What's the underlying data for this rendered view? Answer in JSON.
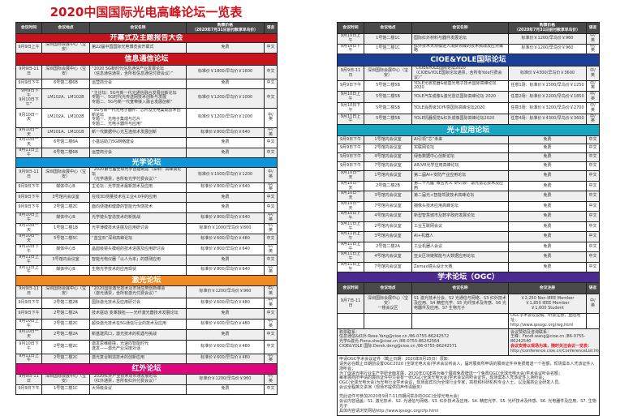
{
  "title": "2020中国国际光电高峰论坛一览表",
  "headers": [
    "会议时间",
    "会议地点",
    "会议名称",
    "购票价格\n（2020年7月31日前付款享早鸟价）",
    "语言"
  ],
  "ogc_headers": [
    "会议时间",
    "会议地点",
    "会议名称",
    "会议注册",
    "语言"
  ],
  "colors": {
    "title": "#d0121b",
    "opening": "#c8141c",
    "ict": "#c8141c",
    "optics": "#0c96d8",
    "laser": "#f08a24",
    "infrared": "#e0047c",
    "cioe_yole": "#1b3f97",
    "light_plus": "#17a5c1",
    "ogc": "#4b2a8f"
  },
  "left": [
    {
      "section": "开幕式及主题报告大会",
      "color": "opening",
      "rows": [
        [
          "9月9日上午",
          "深圳国际会展中心（宝安）",
          "第22届中国国际光电博览会开幕式",
          "免费",
          "中文"
        ]
      ]
    },
    {
      "section": "信息通信论坛",
      "color": "ict",
      "rows": [
        [
          "9月9日-11日",
          "深圳国际会展中心（宝安）",
          "“2020 5G新时代信息通信产业发展论坛\n（信息通信通票，含所有信息通信付费会议）”",
          "标准价￥1800/早鸟价￥1600",
          "中文"
        ],
        [
          "9月9日下午",
          "6号馆二楼6B",
          "运营商分会",
          "免费",
          "中文"
        ],
        [
          "“9月9日下午\n9月10日下午”",
          "LM102A、LM102B",
          "“主论坛：5G与新一代光通信融合发展创新论坛\n专题一、5G时代光传送网技术创新与发展\n专题二、5G与新一代宽带接入融合发展创新”",
          "标准价￥1200/早鸟价￥1000",
          "中文"
        ],
        [
          "9月10日一天",
          "LM102A、LM102B",
          "“5G与新一代光电子器件、芯片及光电集成技术创新论坛\n专题一、光电子集成与芯片\n专题二、光电子器件与应用”",
          "标准价￥1200/早鸟价￥1000",
          "中/英"
        ],
        [
          "9月10日一天",
          "LM101A、LM101B",
          "新一代数据中心光互连技术发展创新",
          "标准价￥800/早鸟价￥640",
          "中/英"
        ],
        [
          "9月10日一天",
          "6号馆二楼6A",
          "小基站助力5G网络建设",
          "免费",
          "中文"
        ],
        [
          "9月11日上午",
          "6号馆二楼6B",
          "运营商分会",
          "免费",
          "中文"
        ]
      ]
    },
    {
      "section": "光学论坛",
      "color": "optics",
      "rows": [
        [
          "9月9日-11日",
          "深圳国际会展中心（宝安）",
          "“2020第七届全球光学智能制造（深圳）高峰会论坛\n（光学通票，含所有光学付费会议）”",
          "标准价￥1500/早鸟价￥1200",
          "中/英"
        ],
        [
          "9月9日下午",
          "媒体中心B",
          "主论坛：光学技术最新技术及应用",
          "标准价￥800/早鸟价￥640",
          "中/英"
        ],
        [
          "9月9日下午",
          "3号馆内会议室",
          "在线3D测量技术在工业4.0中的应用",
          "免费",
          "中文"
        ],
        [
          "9月9日下午",
          "2号馆二楼2C",
          "面向便捷和健康的智能光传感技术",
          "免费",
          "中文"
        ],
        [
          "9月10日上午",
          "媒体中心B",
          "光学镜头智造技术的新挑战",
          "标准价￥800/早鸟价￥640",
          "中/英"
        ],
        [
          "9月10日一天",
          "1号馆二楼1B",
          "光学薄膜技术进展及应用研讨会",
          "标准价￥1000/早鸟价￥800",
          "中/英"
        ],
        [
          "9月10日一天",
          "5号馆二楼5C",
          "“蓝宝石”深圳高峰论坛",
          "标准价￥600/早鸟价￥480",
          "中文"
        ],
        [
          "9月10日下午",
          "媒体中心B",
          "晶圆级镜头模组的技术进展及应用研讨会",
          "标准价￥800/早鸟价￥640",
          "中/英"
        ],
        [
          "9月11日上午",
          "3号馆内会议室",
          "智能光电仪器「以人为本」的感测应用",
          "免费",
          "中文"
        ],
        [
          "9月11日上午",
          "媒体中心B",
          "生物光学技术的应用现状",
          "标准价￥800/早鸟价￥640",
          "中/英"
        ]
      ]
    },
    {
      "section": "激光论坛",
      "color": "laser",
      "rows": [
        [
          "9月9日-11日",
          "深圳国际会展中心（宝安）",
          "“2020国际激光技术及市场应用创新峰会\n（激光通票，含所有激光付费会议）”",
          "标准价￥1200/早鸟价￥960",
          "中/英"
        ],
        [
          "9月9日下午",
          "2号馆二楼2B",
          "国际激光技术及应用研讨会",
          "标准价￥600/早鸟价￥480",
          "中/英"
        ],
        [
          "9月9日下午",
          "2号馆二楼2A",
          "技术驱动 变革融拓——光纤激光器技术发展论坛",
          "免费",
          "中文"
        ],
        [
          "9月10日上午",
          "2号馆二楼2C",
          "超快激光技术在5G通信行业的技术及应用",
          "标准价￥600/早鸟价￥480",
          "中/英"
        ],
        [
          "9月10日一天",
          "2号馆二楼2A",
          "新基建风口，激光技术的机遇与挑战",
          "免费",
          "中文"
        ],
        [
          "9月10日下午",
          "2号馆二楼2C",
          "激发思维碰撞，光速向智能时代\n迸发——激光产业深度对话",
          "标准价￥600/早鸟价￥480",
          "中文"
        ],
        [
          "9月11日上午",
          "2号馆二楼2C",
          "激光复合制造技术的创新应用",
          "标准价￥600/早鸟价￥480",
          "中/英"
        ]
      ]
    },
    {
      "section": "红外论坛",
      "color": "infrared",
      "rows": [
        [
          "9月9日-11日",
          "深圳国际会展中心（宝安）",
          "“2020红外产业技术及市场发展论坛\n（红外通票，含所有红外付费会议）”",
          "标准价￥1200/早鸟价￥960",
          "中/英"
        ],
        [
          "9月9日下午",
          "1号馆二楼1C",
          "大师级会议",
          "免费",
          "中文"
        ]
      ]
    }
  ],
  "right": [
    {
      "section": "",
      "rows": [
        [
          "9月10日上午",
          "1号馆二楼1C",
          "国际红外材料与器件发展论坛",
          "标准价￥1200/早鸟价￥960",
          "中/英"
        ],
        [
          "9月10日下午",
          "1号馆二楼1C",
          "红外技术大规模进入消费领域的技术挑战及应对策略",
          "标准价￥1200/早鸟价￥960",
          "中/英"
        ]
      ]
    },
    {
      "section": "CIOE&YOLE国际论坛",
      "color": "cioe_yole",
      "rows": [
        [
          "9月9日-11日",
          "深圳国际会展中心（宝安）",
          "“CIOE&YOLE国际论坛2020\n（CIOE&YOLE国际论坛通票，含所有Yole付费会议）”",
          "标准价￥4300/早鸟价￥3600",
          "中/英"
        ],
        [
          "9月9日下午",
          "5号馆二楼5B",
          "YOLE光收发器&硅基光电子技术国际高峰论坛2020",
          "任意1场：标准价￥1500/早鸟价￥1250",
          "中/英"
        ],
        [
          "9月10日上午",
          "5号馆二楼5B",
          "YOLE汽车成像&激光雷达国际高峰论坛 2020",
          "任意2场：标准价￥2200/早鸟价￥1850",
          "中/英"
        ],
        [
          "9月10日下午",
          "5号馆二楼5B",
          "YOLE消费级3D传感国际高峰论坛2020",
          "任意3场：标准价￥3200/早鸟价￥2700",
          "中/英"
        ],
        [
          "9月11日上午",
          "5号馆二楼5B",
          "YOLE机器视觉&红外成像国际高峰论坛2020",
          "任意4场：标准价￥4300/早鸟价￥3600",
          "中/英"
        ]
      ]
    },
    {
      "section": "光+应用论坛",
      "color": "light_plus",
      "rows": [
        [
          "9月9日下午",
          "1号馆内会议室",
          "AI引领“芯”未来",
          "免费",
          "中文"
        ],
        [
          "9月9日下午",
          "2号馆内会议室",
          "实联网论坛",
          "免费",
          "中文"
        ],
        [
          "9月9日下午",
          "4号馆内会议室",
          "绿色数据中心创新论坛",
          "免费",
          "中文"
        ],
        [
          "9月9日下午",
          "7号馆内会议室",
          "AR/VR光学应用高峰论坛",
          "免费",
          "中文"
        ],
        [
          "9月10日一天",
          "1号馆内会议室",
          "第二届AI+安防产业应用论坛",
          "免费",
          "中文"
        ],
        [
          "9月10日一天",
          "2号馆二楼2B",
          "第二十九届“微言大义”研讨会：激光雷达技术及应用",
          "免费",
          "中文"
        ],
        [
          "9月10日一天",
          "3号馆内会议室",
          "第二届光+智能驾驶技术高峰论坛",
          "免费",
          "中文"
        ],
        [
          "9月10日一天",
          "7号馆内会议室",
          "摄像头技术应用高峰论坛",
          "免费",
          "中文"
        ],
        [
          "9月10日下午",
          "4号馆内会议室",
          "新型智慧城市及数字政府发展论坛",
          "免费",
          "中文"
        ],
        [
          "9月11日上午",
          "2号馆内会议室",
          "工业互联网会议",
          "免费",
          "中文"
        ],
        [
          "9月11日上午",
          "3号馆内会议室",
          "AI+机器人",
          "免费",
          "中文"
        ],
        [
          "9月11日上午",
          "2号馆二楼2A",
          "工业机器人会议",
          "免费",
          "中文"
        ],
        [
          "9月11日上午",
          "4号馆内会议室",
          "亚太区块链赋能与大数据应用论坛",
          "免费",
          "中文"
        ],
        [
          "9月11日上午",
          "7号馆内会议室",
          "Zemax镜头设计大赛",
          "免费",
          "中文"
        ]
      ]
    }
  ],
  "ogc": {
    "section": "学术论坛（OGC）",
    "row": [
      "9月7日-11日",
      "深圳国际会展中心（宝安）\n一楼会议区",
      "S1 激光技术分会、S2 光通信与网络、S3 红外技术及应用、S4 精密光学、S5 光纤技术及传感、S6 光电器件及应用、S7 生物光子",
      "￥2,250 Non-IEEE Member\n￥1,850 IEEE Member\n￥1,600 Student",
      "中/英"
    ],
    "register": "OGC学术会议投稿、听会注册，登陆地址：\nhttp://www.ipsogc.org/reg.html",
    "contacts_left": "购票联系：\n信息通信&红外:Rose.Yang@cioe.cn /86-0755-86242572\n光学&激光:Fiona.she@cioe.cn /86-0755-86242564\nCIOE&YOLE 国际:Derek.deng@cioe.cn /86-0755-86242571",
    "contacts_right_1": "会议赞助及咨询联系：\n王峰：Fendi.wang@cioe.cn /86-0755-86242540",
    "contacts_right_red": "会议安排以现场为准，随时关注会议一览表：",
    "contacts_right_2": "http://conference.cioe.cn/ConferenceList.html",
    "notes": "申请OGC学术会议证件（截止日期：2020年8月25日）须知：\n请务必在截止日期前设置OGC2020 (全球光电大会)学术会议听会人，届时展商所申请的展商证件中免费赠送一个名额，现场需本人凭该证件入场听会；\n为了促进光电行业生产学研全面发展，2020年CIOE将为每个展商免费赠送一个免费OGC(全球光电大会)学术会议听会名额；\n每家展商所申请的展商证件中只会有一张OGC(全球光电大会)学术会议的听会证件，现场需本人凭该证件入场听会；\nOGC(全球光电大会)为光电行业学术会议，现场嘉宾均为全球行业专家，高校和科研机构专业人士，以及展商企业研发人员。\n会议全程英文讲演（现场不提供同声传译服务）\n\n凭此证件可参加2020年9月7-11日期间举办的OGC(全球光电大会)\n会议内容涵盖：S1. 激光技术、S2. 光通信与网络、S3. 红外技术及应用、S4. 精密光学、S5. 光纤技术及传感、S6. 光电器件及应用、S7. 生物光子\n具体内容请浏览网站http://www.ipsogc.org/cfp.html"
  }
}
